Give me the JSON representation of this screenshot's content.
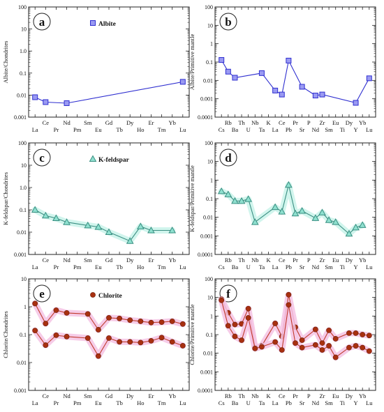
{
  "colors": {
    "albite": "#2f2fd0",
    "albite_fill": "#9a9af2",
    "kfeldspar": "#3a8f82",
    "kfeldspar_fill": "#8fe0cf",
    "kfeldspar_halo": "#c9f3ea",
    "chlorite_line": "#c0392b",
    "chlorite_marker": "#a83010",
    "chlorite_halo": "#f4c3e4"
  },
  "chart_data": [
    {
      "id": "a",
      "type": "line",
      "yscale": "log",
      "ylim": [
        0.001,
        100
      ],
      "ylabel": "Albite/Chondrites",
      "legend_label": "Albite",
      "legend_position": "top-center",
      "yticks": [
        "0.001",
        "0.01",
        "0.1",
        "1.0",
        "10",
        "100"
      ],
      "categories": [
        "La",
        "Ce",
        "Pr",
        "Nd",
        "Pm",
        "Sm",
        "Eu",
        "Gd",
        "Tb",
        "Dy",
        "Ho",
        "Er",
        "Tm",
        "Yb",
        "Lu"
      ],
      "series": [
        {
          "values": [
            0.008,
            0.0048,
            null,
            0.0043,
            null,
            null,
            null,
            null,
            null,
            null,
            null,
            null,
            null,
            null,
            0.04
          ]
        }
      ]
    },
    {
      "id": "b",
      "type": "line",
      "yscale": "log",
      "ylim": [
        0.0001,
        100
      ],
      "ylabel": "Albite/Primitive mantle",
      "yticks": [
        "0.0001",
        "0.001",
        "0.01",
        "0.1",
        "1",
        "10",
        "100"
      ],
      "categories": [
        "Cs",
        "Rb",
        "Ba",
        "Th",
        "U",
        "Nb",
        "Ta",
        "K",
        "La",
        "Ce",
        "Pb",
        "Pr",
        "Sr",
        "P",
        "Nd",
        "Zr",
        "Sm",
        "Eu",
        "Ti",
        "Dy",
        "Y",
        "Yb",
        "Lu"
      ],
      "series": [
        {
          "values": [
            0.13,
            0.03,
            0.014,
            null,
            null,
            null,
            0.025,
            null,
            0.0028,
            0.0017,
            0.12,
            null,
            0.0045,
            null,
            0.0015,
            0.0017,
            null,
            null,
            null,
            null,
            0.0006,
            null,
            0.013
          ]
        }
      ]
    },
    {
      "id": "c",
      "type": "line",
      "yscale": "log",
      "ylim": [
        0.001,
        100
      ],
      "ylabel": "K-feldspar/Chondrites",
      "legend_label": "K-feldspar",
      "legend_position": "top-center",
      "yticks": [
        "0.001",
        "0.01",
        "0.1",
        "1.0",
        "10",
        "100"
      ],
      "categories": [
        "La",
        "Ce",
        "Pr",
        "Nd",
        "Pm",
        "Sm",
        "Eu",
        "Gd",
        "Tb",
        "Dy",
        "Ho",
        "Er",
        "Tm",
        "Yb",
        "Lu"
      ],
      "series": [
        {
          "values": [
            0.1,
            0.055,
            0.042,
            0.028,
            null,
            0.02,
            0.017,
            0.01,
            null,
            0.004,
            0.018,
            0.012,
            null,
            0.012,
            null
          ]
        }
      ]
    },
    {
      "id": "d",
      "type": "line",
      "yscale": "log",
      "ylim": [
        0.0001,
        100
      ],
      "ylabel": "K-feldspar/Primitive mantle",
      "yticks": [
        "0.0001",
        "0.001",
        "0.01",
        "0.1",
        "1",
        "10",
        "100"
      ],
      "categories": [
        "Cs",
        "Rb",
        "Ba",
        "Th",
        "U",
        "Nb",
        "Ta",
        "K",
        "La",
        "Ce",
        "Pb",
        "Pr",
        "Sr",
        "P",
        "Nd",
        "Zr",
        "Sm",
        "Eu",
        "Ti",
        "Dy",
        "Y",
        "Yb",
        "Lu"
      ],
      "series": [
        {
          "values": [
            0.25,
            0.17,
            0.075,
            0.075,
            0.095,
            0.0055,
            null,
            null,
            0.035,
            0.02,
            0.55,
            0.016,
            0.022,
            null,
            0.009,
            0.018,
            0.007,
            0.0055,
            null,
            0.0013,
            0.0028,
            0.0038,
            null
          ]
        }
      ]
    },
    {
      "id": "e",
      "type": "line",
      "yscale": "log",
      "ylim": [
        0.001,
        10
      ],
      "ylabel": "Chlorite/Chondrites",
      "legend_label": "Chlorite",
      "legend_position": "top-center",
      "yticks": [
        "0.001",
        "0.01",
        "0.1",
        "1",
        "10"
      ],
      "categories": [
        "La",
        "Ce",
        "Pr",
        "Nd",
        "Pm",
        "Sm",
        "Eu",
        "Gd",
        "Tb",
        "Dy",
        "Ho",
        "Er",
        "Tm",
        "Yb",
        "Lu"
      ],
      "series": [
        {
          "values": [
            1.3,
            0.25,
            0.75,
            0.6,
            null,
            0.55,
            0.15,
            0.4,
            0.38,
            0.33,
            0.3,
            0.27,
            0.28,
            0.3,
            0.24
          ]
        },
        {
          "values": [
            0.14,
            0.042,
            0.095,
            0.085,
            null,
            0.075,
            0.017,
            0.075,
            0.055,
            0.055,
            0.052,
            0.06,
            0.078,
            0.055,
            0.04
          ]
        }
      ]
    },
    {
      "id": "f",
      "type": "line",
      "yscale": "log",
      "ylim": [
        0.0001,
        100
      ],
      "ylabel": "Chlorite/Primitive mantle",
      "yticks": [
        "0.0001",
        "0.001",
        "0.01",
        "0.1",
        "1",
        "10",
        "100"
      ],
      "categories": [
        "Cs",
        "Rb",
        "Ba",
        "Th",
        "U",
        "Nb",
        "Ta",
        "K",
        "La",
        "Ce",
        "Pb",
        "Pr",
        "Sr",
        "P",
        "Nd",
        "Zr",
        "Sm",
        "Eu",
        "Ti",
        "Dy",
        "Y",
        "Yb",
        "Lu"
      ],
      "series": [
        {
          "values": [
            8,
            1.5,
            0.35,
            0.38,
            2.5,
            0.02,
            0.025,
            null,
            0.4,
            0.08,
            14,
            0.25,
            0.05,
            null,
            0.19,
            0.035,
            0.17,
            0.06,
            null,
            0.12,
            0.12,
            0.1,
            0.09
          ]
        },
        {
          "values": [
            7,
            0.3,
            0.08,
            0.05,
            0.8,
            0.018,
            0.022,
            null,
            0.04,
            0.015,
            4,
            0.035,
            0.02,
            null,
            0.028,
            0.015,
            0.025,
            0.006,
            null,
            0.02,
            0.025,
            0.02,
            0.013
          ]
        }
      ]
    }
  ]
}
